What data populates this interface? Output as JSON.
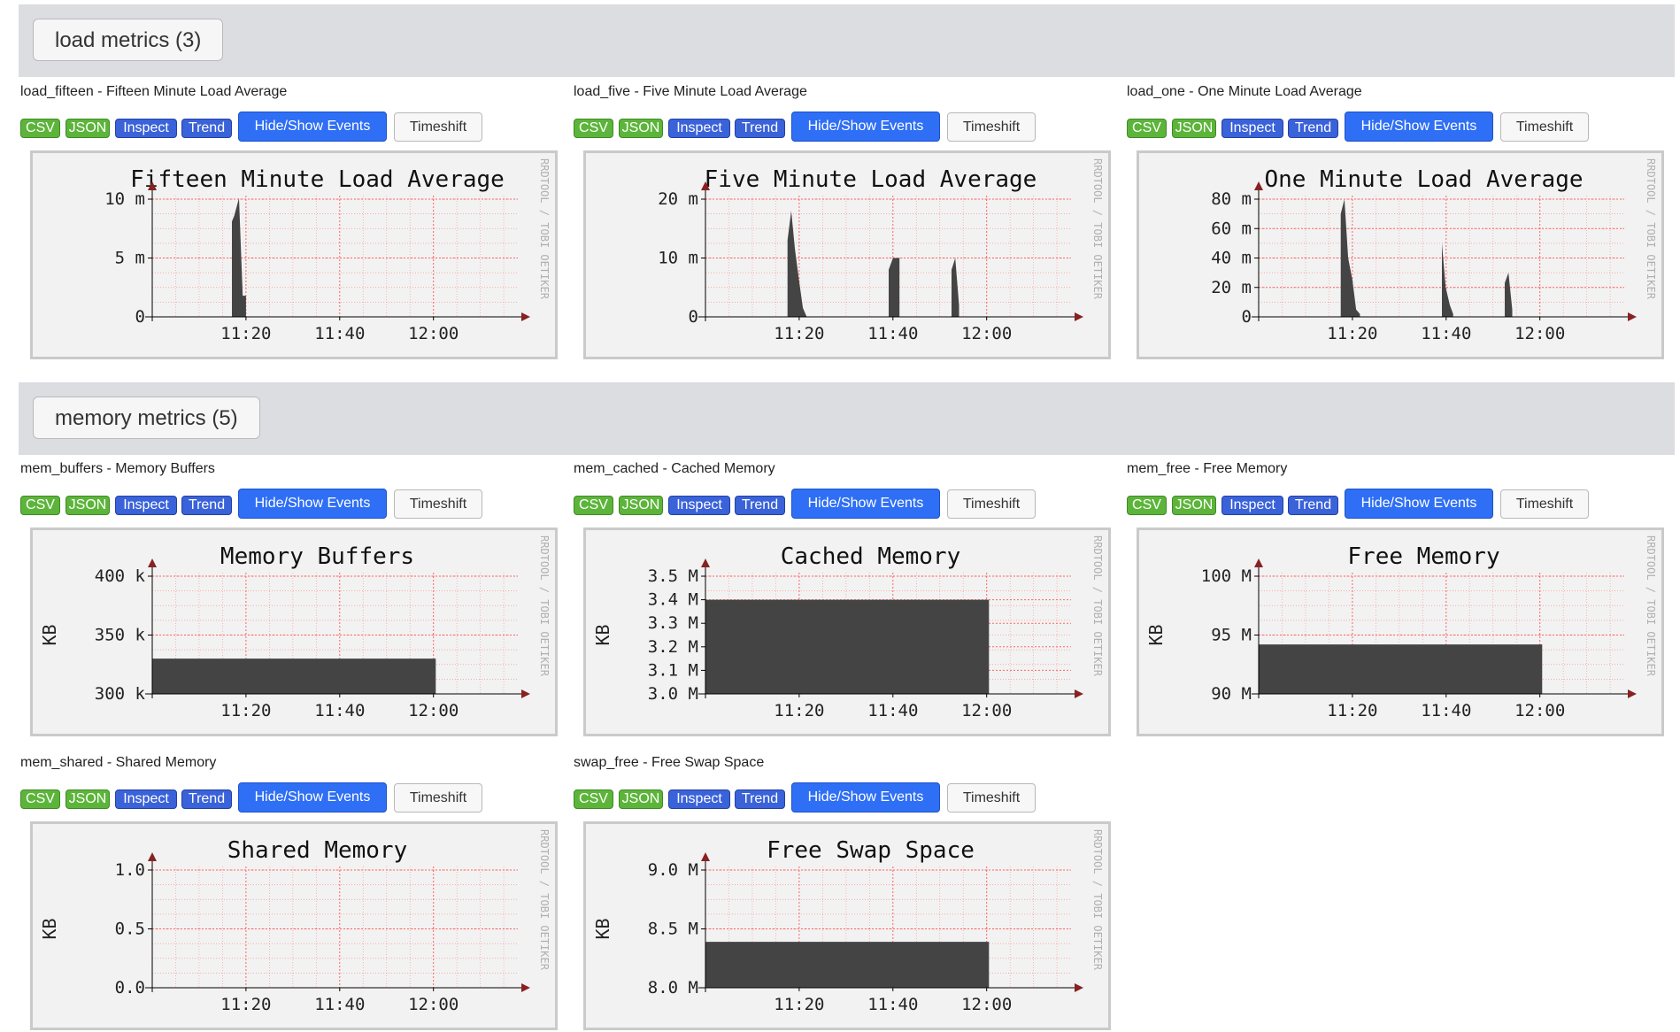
{
  "sections": [
    {
      "title": "load metrics (3)"
    },
    {
      "title": "memory metrics (5)"
    }
  ],
  "buttons": {
    "csv": "CSV",
    "json": "JSON",
    "inspect": "Inspect",
    "trend": "Trend",
    "events": "Hide/Show Events",
    "timeshift": "Timeshift"
  },
  "watermark": "RRDTOOL / TOBI OETIKER",
  "colors": {
    "area": "#444444",
    "grid": "#ff5555",
    "axis": "#882222"
  },
  "graphs": [
    {
      "title": "load_fifteen - Fifteen Minute Load Average"
    },
    {
      "title": "load_five - Five Minute Load Average"
    },
    {
      "title": "load_one - One Minute Load Average"
    },
    {
      "title": "mem_buffers - Memory Buffers"
    },
    {
      "title": "mem_cached - Cached Memory"
    },
    {
      "title": "mem_free - Free Memory"
    },
    {
      "title": "mem_shared - Shared Memory"
    },
    {
      "title": "swap_free - Free Swap Space"
    }
  ],
  "chart_data": [
    {
      "type": "area",
      "title": "Fifteen Minute Load Average",
      "ylabel": "",
      "xticks": [
        "11:20",
        "11:40",
        "12:00"
      ],
      "xtick_values": [
        20,
        40,
        60
      ],
      "xlim": [
        0,
        78
      ],
      "ylim": [
        0,
        10
      ],
      "yticks": [
        {
          "v": 0,
          "label": "0"
        },
        {
          "v": 5,
          "label": "5 m"
        },
        {
          "v": 10,
          "label": "10 m"
        }
      ],
      "x": [
        17,
        17,
        17.5,
        18.5,
        19.3,
        20,
        20
      ],
      "y": [
        0,
        8.1,
        8.6,
        10.1,
        1.8,
        1.8,
        0
      ]
    },
    {
      "type": "area",
      "title": "Five Minute Load Average",
      "ylabel": "",
      "xticks": [
        "11:20",
        "11:40",
        "12:00"
      ],
      "xtick_values": [
        20,
        40,
        60
      ],
      "xlim": [
        0,
        78
      ],
      "ylim": [
        0,
        20
      ],
      "yticks": [
        {
          "v": 0,
          "label": "0"
        },
        {
          "v": 10,
          "label": "10 m"
        },
        {
          "v": 20,
          "label": "20 m"
        }
      ],
      "x": [
        17.5,
        17.5,
        18.3,
        19.1,
        20,
        20.8,
        21.6,
        21.6,
        39.1,
        39.1,
        40,
        41.4,
        41.4,
        52.5,
        52.5,
        53.3,
        54.1,
        54.1
      ],
      "y": [
        0,
        13,
        18,
        11.5,
        6,
        1.5,
        0,
        0,
        0,
        8,
        10,
        10,
        0,
        0,
        8,
        10,
        2,
        0
      ]
    },
    {
      "type": "area",
      "title": "One Minute Load Average",
      "ylabel": "",
      "xticks": [
        "11:20",
        "11:40",
        "12:00"
      ],
      "xtick_values": [
        20,
        40,
        60
      ],
      "xlim": [
        0,
        78
      ],
      "ylim": [
        0,
        80
      ],
      "yticks": [
        {
          "v": 0,
          "label": "0"
        },
        {
          "v": 20,
          "label": "20 m"
        },
        {
          "v": 40,
          "label": "40 m"
        },
        {
          "v": 60,
          "label": "60 m"
        },
        {
          "v": 80,
          "label": "80 m"
        }
      ],
      "x": [
        17.5,
        17.5,
        18.3,
        19.1,
        20,
        20.8,
        21.6,
        21.6,
        39.1,
        39.1,
        39.9,
        40.8,
        41.5,
        41.5,
        52.5,
        52.5,
        53.3,
        54.1,
        54.1
      ],
      "y": [
        0,
        70,
        80,
        40,
        25,
        5,
        2,
        0,
        0,
        50,
        20,
        8,
        2,
        0,
        0,
        23,
        30,
        5,
        0
      ]
    },
    {
      "type": "area",
      "title": "Memory Buffers",
      "ylabel": "KB",
      "xticks": [
        "11:20",
        "11:40",
        "12:00"
      ],
      "xtick_values": [
        20,
        40,
        60
      ],
      "xlim": [
        0,
        78
      ],
      "ylim": [
        300,
        400
      ],
      "yticks": [
        {
          "v": 300,
          "label": "300 k"
        },
        {
          "v": 350,
          "label": "350 k"
        },
        {
          "v": 400,
          "label": "400 k"
        }
      ],
      "x": [
        0,
        0,
        60.5,
        60.5
      ],
      "y": [
        300,
        330,
        330,
        300
      ]
    },
    {
      "type": "area",
      "title": "Cached Memory",
      "ylabel": "KB",
      "xticks": [
        "11:20",
        "11:40",
        "12:00"
      ],
      "xtick_values": [
        20,
        40,
        60
      ],
      "xlim": [
        0,
        78
      ],
      "ylim": [
        3.0,
        3.5
      ],
      "yticks": [
        {
          "v": 3.0,
          "label": "3.0 M"
        },
        {
          "v": 3.1,
          "label": "3.1 M"
        },
        {
          "v": 3.2,
          "label": "3.2 M"
        },
        {
          "v": 3.3,
          "label": "3.3 M"
        },
        {
          "v": 3.4,
          "label": "3.4 M"
        },
        {
          "v": 3.5,
          "label": "3.5 M"
        }
      ],
      "x": [
        0,
        0,
        60.5,
        60.5
      ],
      "y": [
        3.0,
        3.4,
        3.4,
        3.0
      ]
    },
    {
      "type": "area",
      "title": "Free Memory",
      "ylabel": "KB",
      "xticks": [
        "11:20",
        "11:40",
        "12:00"
      ],
      "xtick_values": [
        20,
        40,
        60
      ],
      "xlim": [
        0,
        78
      ],
      "ylim": [
        90,
        100
      ],
      "yticks": [
        {
          "v": 90,
          "label": "90 M"
        },
        {
          "v": 95,
          "label": "95 M"
        },
        {
          "v": 100,
          "label": "100 M"
        }
      ],
      "x": [
        0,
        0,
        60.5,
        60.5
      ],
      "y": [
        90,
        94.2,
        94.2,
        90
      ]
    },
    {
      "type": "area",
      "title": "Shared Memory",
      "ylabel": "KB",
      "xticks": [
        "11:20",
        "11:40",
        "12:00"
      ],
      "xtick_values": [
        20,
        40,
        60
      ],
      "xlim": [
        0,
        78
      ],
      "ylim": [
        0,
        1.0
      ],
      "yticks": [
        {
          "v": 0,
          "label": "0.0"
        },
        {
          "v": 0.5,
          "label": "0.5"
        },
        {
          "v": 1.0,
          "label": "1.0"
        }
      ],
      "x": [],
      "y": []
    },
    {
      "type": "area",
      "title": "Free Swap Space",
      "ylabel": "KB",
      "xticks": [
        "11:20",
        "11:40",
        "12:00"
      ],
      "xtick_values": [
        20,
        40,
        60
      ],
      "xlim": [
        0,
        78
      ],
      "ylim": [
        8.0,
        9.0
      ],
      "yticks": [
        {
          "v": 8.0,
          "label": "8.0 M"
        },
        {
          "v": 8.5,
          "label": "8.5 M"
        },
        {
          "v": 9.0,
          "label": "9.0 M"
        }
      ],
      "x": [
        0,
        0,
        60.5,
        60.5
      ],
      "y": [
        8.0,
        8.39,
        8.39,
        8.0
      ]
    }
  ]
}
